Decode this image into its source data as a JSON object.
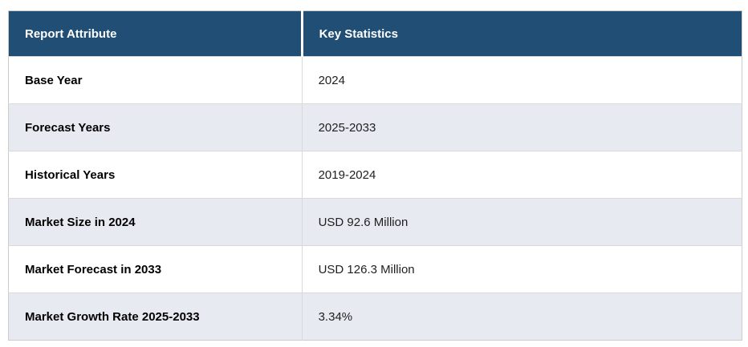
{
  "table": {
    "headers": [
      {
        "label": "Report Attribute"
      },
      {
        "label": "Key Statistics"
      }
    ],
    "rows": [
      {
        "attribute": "Base Year",
        "value": "2024"
      },
      {
        "attribute": "Forecast Years",
        "value": "2025-2033"
      },
      {
        "attribute": "Historical Years",
        "value": "2019-2024"
      },
      {
        "attribute": "Market Size in 2024",
        "value": "USD 92.6 Million"
      },
      {
        "attribute": "Market Forecast in 2033",
        "value": "USD 126.3 Million"
      },
      {
        "attribute": "Market Growth Rate 2025-2033",
        "value": "3.34%"
      }
    ]
  },
  "colors": {
    "header_bg": "#204E74",
    "header_text": "#FFFFFF",
    "row_bg": "#FFFFFF",
    "row_alt_bg": "#E8EAF2",
    "border_outer": "#CCCCCC",
    "border_inner": "#D9D9D9",
    "attribute_text": "#000000",
    "value_text": "#1F1F1F"
  },
  "chart_data": {
    "type": "table",
    "title": "",
    "columns": [
      "Report Attribute",
      "Key Statistics"
    ],
    "rows": [
      [
        "Base Year",
        "2024"
      ],
      [
        "Forecast Years",
        "2025-2033"
      ],
      [
        "Historical Years",
        "2019-2024"
      ],
      [
        "Market Size in 2024",
        "USD 92.6 Million"
      ],
      [
        "Market Forecast in 2033",
        "USD 126.3 Million"
      ],
      [
        "Market Growth Rate 2025-2033",
        "3.34%"
      ]
    ]
  }
}
